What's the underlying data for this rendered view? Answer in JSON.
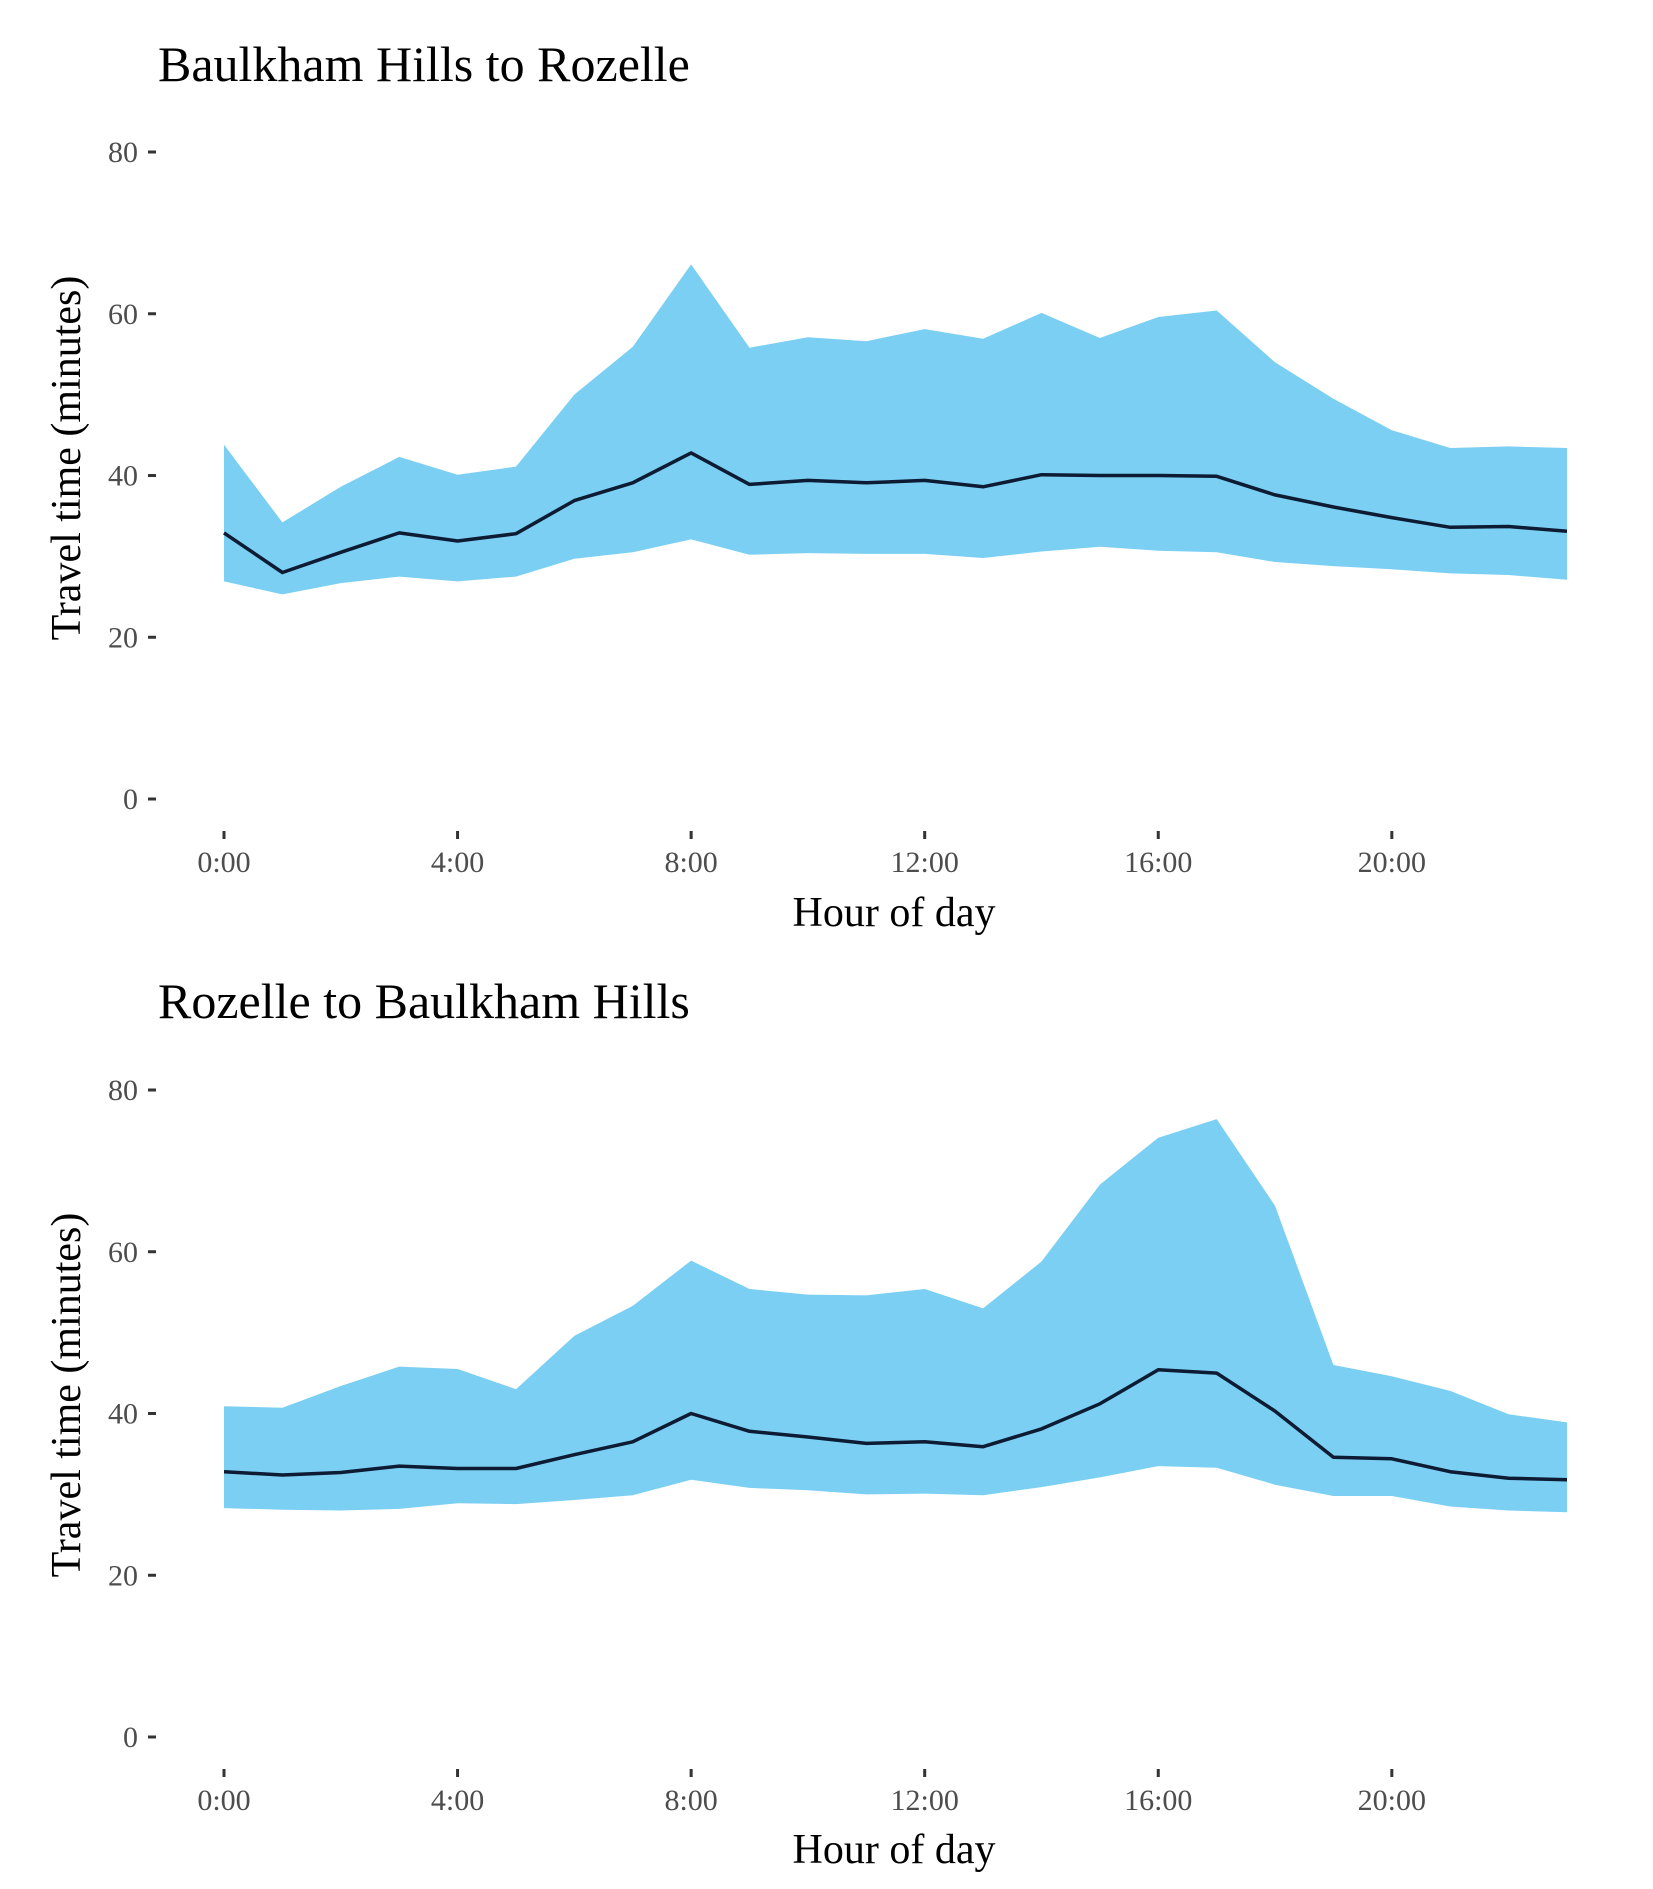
{
  "colors": {
    "band": "#7acff3",
    "line": "#0d1b33",
    "tick": "#333333",
    "tick_label": "#4d4d4d",
    "text": "#000000"
  },
  "chart_data": [
    {
      "type": "area",
      "title": "Baulkham Hills to Rozelle",
      "xlabel": "Hour of day",
      "ylabel": "Travel time (minutes)",
      "ylim": [
        0,
        80
      ],
      "yticks": [
        0,
        20,
        40,
        60,
        80
      ],
      "ytick_labels": [
        "0",
        "20",
        "40",
        "60",
        "80"
      ],
      "xticks": [
        0,
        4,
        8,
        12,
        16,
        20
      ],
      "xtick_labels": [
        "0:00",
        "4:00",
        "8:00",
        "12:00",
        "16:00",
        "20:00"
      ],
      "grid": false,
      "x": [
        0,
        1,
        2,
        3,
        4,
        5,
        6,
        7,
        8,
        9,
        10,
        11,
        12,
        13,
        14,
        15,
        16,
        17,
        18,
        19,
        20,
        21,
        22,
        23
      ],
      "series": [
        {
          "name": "upper",
          "values": [
            43.8,
            34.2,
            38.6,
            42.3,
            40.1,
            41.1,
            50.0,
            55.9,
            66.1,
            55.8,
            57.1,
            56.6,
            58.1,
            56.9,
            60.1,
            57.0,
            59.6,
            60.4,
            54.0,
            49.5,
            45.6,
            43.4,
            43.6,
            43.4
          ]
        },
        {
          "name": "median",
          "values": [
            32.9,
            28.0,
            30.5,
            32.9,
            31.9,
            32.8,
            36.9,
            39.1,
            42.8,
            38.9,
            39.4,
            39.1,
            39.4,
            38.6,
            40.1,
            40.0,
            40.0,
            39.9,
            37.6,
            36.1,
            34.8,
            33.6,
            33.7,
            33.1
          ]
        },
        {
          "name": "lower",
          "values": [
            26.9,
            25.3,
            26.7,
            27.5,
            26.9,
            27.5,
            29.7,
            30.5,
            32.1,
            30.2,
            30.4,
            30.3,
            30.3,
            29.8,
            30.6,
            31.2,
            30.7,
            30.5,
            29.3,
            28.8,
            28.4,
            27.9,
            27.7,
            27.1
          ]
        }
      ]
    },
    {
      "type": "area",
      "title": "Rozelle to Baulkham Hills",
      "xlabel": "Hour of day",
      "ylabel": "Travel time (minutes)",
      "ylim": [
        0,
        80
      ],
      "yticks": [
        0,
        20,
        40,
        60,
        80
      ],
      "ytick_labels": [
        "0",
        "20",
        "40",
        "60",
        "80"
      ],
      "xticks": [
        0,
        4,
        8,
        12,
        16,
        20
      ],
      "xtick_labels": [
        "0:00",
        "4:00",
        "8:00",
        "12:00",
        "16:00",
        "20:00"
      ],
      "grid": false,
      "x": [
        0,
        1,
        2,
        3,
        4,
        5,
        6,
        7,
        8,
        9,
        10,
        11,
        12,
        13,
        14,
        15,
        16,
        17,
        18,
        19,
        20,
        21,
        22,
        23
      ],
      "series": [
        {
          "name": "upper",
          "values": [
            40.9,
            40.7,
            43.4,
            45.8,
            45.5,
            43.0,
            49.6,
            53.3,
            58.9,
            55.4,
            54.7,
            54.6,
            55.4,
            53.0,
            58.8,
            68.3,
            74.1,
            76.4,
            65.7,
            46.0,
            44.6,
            42.8,
            39.9,
            38.9
          ]
        },
        {
          "name": "median",
          "values": [
            32.8,
            32.4,
            32.7,
            33.5,
            33.2,
            33.2,
            34.9,
            36.5,
            40.0,
            37.8,
            37.1,
            36.3,
            36.5,
            35.9,
            38.1,
            41.2,
            45.4,
            45.0,
            40.3,
            34.6,
            34.4,
            32.8,
            32.0,
            31.8
          ]
        },
        {
          "name": "lower",
          "values": [
            28.3,
            28.1,
            28.0,
            28.2,
            28.9,
            28.8,
            29.3,
            29.9,
            31.8,
            30.8,
            30.5,
            30.0,
            30.1,
            29.9,
            30.9,
            32.1,
            33.5,
            33.3,
            31.2,
            29.8,
            29.8,
            28.5,
            28.0,
            27.8
          ]
        }
      ]
    }
  ]
}
